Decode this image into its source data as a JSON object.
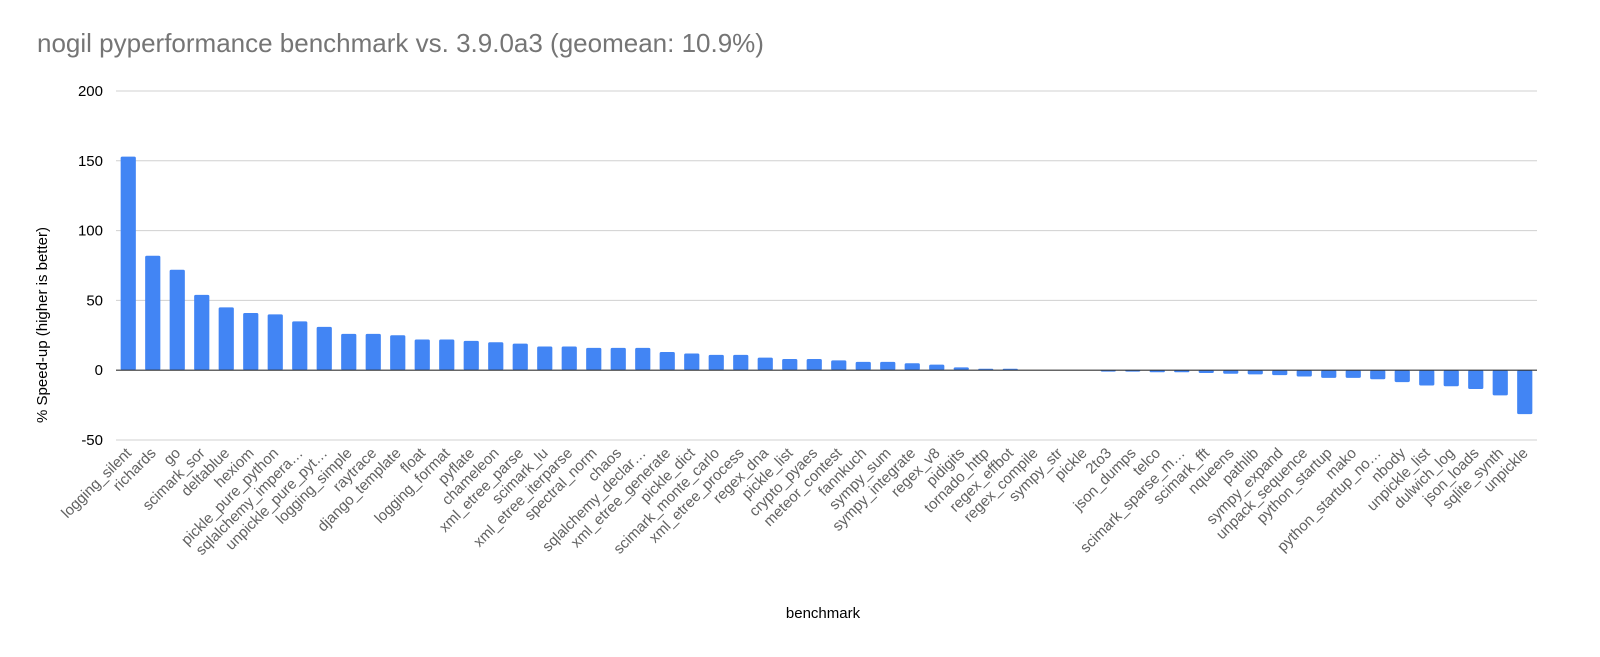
{
  "chart_data": {
    "type": "bar",
    "title": "nogil pyperformance benchmark vs. 3.9.0a3 (geomean: 10.9%)",
    "xlabel": "benchmark",
    "ylabel": "% Speed-up (higher is better)",
    "ylim": [
      -50,
      200
    ],
    "yticks": [
      "200",
      "150",
      "100",
      "50",
      "0",
      "-50"
    ],
    "ytick_values": [
      200,
      150,
      100,
      50,
      0,
      -50
    ],
    "grid": true,
    "bar_color": "#4285f4",
    "categories": [
      "logging_silent",
      "richards",
      "go",
      "scimark_sor",
      "deltablue",
      "hexiom",
      "pickle_pure_python",
      "sqlalchemy_impera…",
      "unpickle_pure_pyt…",
      "logging_simple",
      "raytrace",
      "django_template",
      "float",
      "logging_format",
      "pyflate",
      "chameleon",
      "xml_etree_parse",
      "scimark_lu",
      "xml_etree_iterparse",
      "spectral_norm",
      "chaos",
      "sqlalchemy_declar…",
      "xml_etree_generate",
      "pickle_dict",
      "scimark_monte_carlo",
      "xml_etree_process",
      "regex_dna",
      "pickle_list",
      "crypto_pyaes",
      "meteor_contest",
      "fannkuch",
      "sympy_sum",
      "sympy_integrate",
      "regex_v8",
      "pidigits",
      "tornado_http",
      "regex_effbot",
      "regex_compile",
      "sympy_str",
      "pickle",
      "2to3",
      "json_dumps",
      "telco",
      "scimark_sparse_m…",
      "scimark_fft",
      "nqueens",
      "pathlib",
      "sympy_expand",
      "unpack_sequence",
      "python_startup",
      "mako",
      "python_startup_no…",
      "nbody",
      "unpickle_list",
      "dulwich_log",
      "json_loads",
      "sqlite_synth",
      "unpickle"
    ],
    "values": [
      153,
      82,
      72,
      54,
      45,
      41,
      40,
      35,
      31,
      26,
      26,
      25,
      22,
      22,
      21,
      20,
      19,
      17,
      17,
      16,
      16,
      16,
      13,
      12,
      11,
      11,
      9,
      8,
      8,
      7,
      6,
      6,
      5,
      4,
      2,
      1,
      1,
      0,
      0,
      0,
      -1,
      -1,
      -1.5,
      -1.5,
      -2,
      -2.5,
      -3,
      -3.5,
      -4.5,
      -5.5,
      -5.5,
      -6.5,
      -8.5,
      -11,
      -11.5,
      -13.5,
      -18,
      -31.5
    ]
  }
}
